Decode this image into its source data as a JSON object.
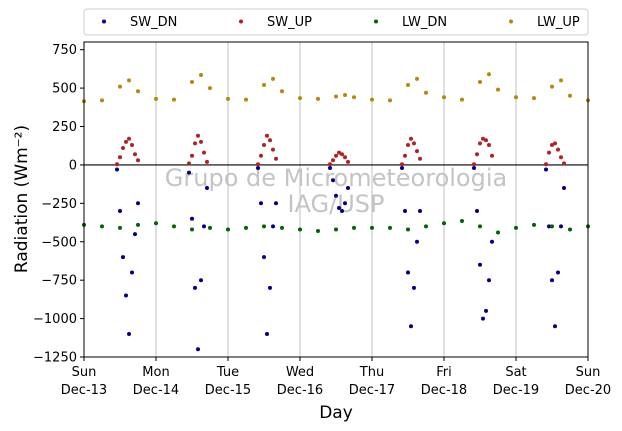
{
  "chart_data": {
    "type": "scatter",
    "title": "",
    "xlabel": "Day",
    "ylabel": "Radiation (Wm⁻²)",
    "ylim": [
      -1250,
      800
    ],
    "xlim": [
      "2015-12-13",
      "2015-12-20"
    ],
    "yticks": [
      -1250,
      -1000,
      -750,
      -500,
      -250,
      0,
      250,
      500,
      750
    ],
    "xticks": [
      {
        "date": "2015-12-13",
        "line1": "Sun",
        "line2": "Dec-13"
      },
      {
        "date": "2015-12-14",
        "line1": "Mon",
        "line2": "Dec-14"
      },
      {
        "date": "2015-12-15",
        "line1": "Tue",
        "line2": "Dec-15"
      },
      {
        "date": "2015-12-16",
        "line1": "Wed",
        "line2": "Dec-16"
      },
      {
        "date": "2015-12-17",
        "line1": "Thu",
        "line2": "Dec-17"
      },
      {
        "date": "2015-12-18",
        "line1": "Fri",
        "line2": "Dec-18"
      },
      {
        "date": "2015-12-19",
        "line1": "Sat",
        "line2": "Dec-19"
      },
      {
        "date": "2015-12-20",
        "line1": "Sun",
        "line2": "Dec-20"
      }
    ],
    "grid": "vertical",
    "legend": "top",
    "watermark": [
      "Grupo de Micrometeorologia",
      "IAG/USP"
    ],
    "zero_line": true,
    "series": [
      {
        "name": "SW_DN",
        "color": "#00008b",
        "points": [
          [
            "2015-12-13 11:00",
            -30
          ],
          [
            "2015-12-13 12:00",
            -300
          ],
          [
            "2015-12-13 13:00",
            -600
          ],
          [
            "2015-12-13 14:00",
            -850
          ],
          [
            "2015-12-13 15:00",
            -1100
          ],
          [
            "2015-12-13 16:00",
            -700
          ],
          [
            "2015-12-13 17:00",
            -450
          ],
          [
            "2015-12-13 18:00",
            -250
          ],
          [
            "2015-12-14 11:00",
            -50
          ],
          [
            "2015-12-14 12:00",
            -350
          ],
          [
            "2015-12-14 13:00",
            -800
          ],
          [
            "2015-12-14 14:00",
            -1200
          ],
          [
            "2015-12-14 15:00",
            -750
          ],
          [
            "2015-12-14 16:00",
            -400
          ],
          [
            "2015-12-14 17:00",
            -150
          ],
          [
            "2015-12-15 10:00",
            -20
          ],
          [
            "2015-12-15 11:00",
            -250
          ],
          [
            "2015-12-15 12:00",
            -600
          ],
          [
            "2015-12-15 13:00",
            -1100
          ],
          [
            "2015-12-15 14:00",
            -800
          ],
          [
            "2015-12-15 15:00",
            -400
          ],
          [
            "2015-12-15 16:00",
            -250
          ],
          [
            "2015-12-16 10:00",
            -20
          ],
          [
            "2015-12-16 11:00",
            -100
          ],
          [
            "2015-12-16 12:00",
            -200
          ],
          [
            "2015-12-16 13:00",
            -280
          ],
          [
            "2015-12-16 14:00",
            -300
          ],
          [
            "2015-12-16 15:00",
            -250
          ],
          [
            "2015-12-16 16:00",
            -150
          ],
          [
            "2015-12-17 10:00",
            -20
          ],
          [
            "2015-12-17 11:00",
            -300
          ],
          [
            "2015-12-17 12:00",
            -700
          ],
          [
            "2015-12-17 13:00",
            -1050
          ],
          [
            "2015-12-17 14:00",
            -800
          ],
          [
            "2015-12-17 15:00",
            -500
          ],
          [
            "2015-12-17 16:00",
            -300
          ],
          [
            "2015-12-18 10:00",
            -20
          ],
          [
            "2015-12-18 11:00",
            -300
          ],
          [
            "2015-12-18 12:00",
            -650
          ],
          [
            "2015-12-18 13:00",
            -1000
          ],
          [
            "2015-12-18 14:00",
            -950
          ],
          [
            "2015-12-18 15:00",
            -750
          ],
          [
            "2015-12-18 16:00",
            -500
          ],
          [
            "2015-12-19 10:00",
            -30
          ],
          [
            "2015-12-19 11:00",
            -400
          ],
          [
            "2015-12-19 12:00",
            -750
          ],
          [
            "2015-12-19 13:00",
            -1050
          ],
          [
            "2015-12-19 14:00",
            -700
          ],
          [
            "2015-12-19 15:00",
            -400
          ],
          [
            "2015-12-19 16:00",
            -150
          ]
        ]
      },
      {
        "name": "SW_UP",
        "color": "#b22222",
        "points": [
          [
            "2015-12-13 11:00",
            5
          ],
          [
            "2015-12-13 12:00",
            50
          ],
          [
            "2015-12-13 13:00",
            110
          ],
          [
            "2015-12-13 14:00",
            150
          ],
          [
            "2015-12-13 15:00",
            170
          ],
          [
            "2015-12-13 16:00",
            130
          ],
          [
            "2015-12-13 17:00",
            70
          ],
          [
            "2015-12-13 18:00",
            30
          ],
          [
            "2015-12-14 11:00",
            10
          ],
          [
            "2015-12-14 12:00",
            60
          ],
          [
            "2015-12-14 13:00",
            140
          ],
          [
            "2015-12-14 14:00",
            190
          ],
          [
            "2015-12-14 15:00",
            150
          ],
          [
            "2015-12-14 16:00",
            80
          ],
          [
            "2015-12-14 17:00",
            20
          ],
          [
            "2015-12-15 10:00",
            5
          ],
          [
            "2015-12-15 11:00",
            60
          ],
          [
            "2015-12-15 12:00",
            130
          ],
          [
            "2015-12-15 13:00",
            190
          ],
          [
            "2015-12-15 14:00",
            160
          ],
          [
            "2015-12-15 15:00",
            100
          ],
          [
            "2015-12-15 16:00",
            40
          ],
          [
            "2015-12-16 10:00",
            5
          ],
          [
            "2015-12-16 11:00",
            30
          ],
          [
            "2015-12-16 12:00",
            60
          ],
          [
            "2015-12-16 13:00",
            80
          ],
          [
            "2015-12-16 14:00",
            70
          ],
          [
            "2015-12-16 15:00",
            50
          ],
          [
            "2015-12-16 16:00",
            20
          ],
          [
            "2015-12-17 10:00",
            5
          ],
          [
            "2015-12-17 11:00",
            60
          ],
          [
            "2015-12-17 12:00",
            130
          ],
          [
            "2015-12-17 13:00",
            170
          ],
          [
            "2015-12-17 14:00",
            140
          ],
          [
            "2015-12-17 15:00",
            90
          ],
          [
            "2015-12-17 16:00",
            40
          ],
          [
            "2015-12-18 10:00",
            5
          ],
          [
            "2015-12-18 11:00",
            70
          ],
          [
            "2015-12-18 12:00",
            140
          ],
          [
            "2015-12-18 13:00",
            170
          ],
          [
            "2015-12-18 14:00",
            160
          ],
          [
            "2015-12-18 15:00",
            130
          ],
          [
            "2015-12-18 16:00",
            60
          ],
          [
            "2015-12-19 10:00",
            5
          ],
          [
            "2015-12-19 11:00",
            80
          ],
          [
            "2015-12-19 12:00",
            130
          ],
          [
            "2015-12-19 13:00",
            140
          ],
          [
            "2015-12-19 14:00",
            100
          ],
          [
            "2015-12-19 15:00",
            50
          ],
          [
            "2015-12-19 16:00",
            10
          ]
        ]
      },
      {
        "name": "LW_DN",
        "color": "#006400",
        "points": [
          [
            "2015-12-13 00:00",
            -390
          ],
          [
            "2015-12-13 06:00",
            -400
          ],
          [
            "2015-12-13 12:00",
            -410
          ],
          [
            "2015-12-13 18:00",
            -390
          ],
          [
            "2015-12-14 00:00",
            -380
          ],
          [
            "2015-12-14 06:00",
            -400
          ],
          [
            "2015-12-14 12:00",
            -420
          ],
          [
            "2015-12-14 18:00",
            -410
          ],
          [
            "2015-12-15 00:00",
            -420
          ],
          [
            "2015-12-15 06:00",
            -410
          ],
          [
            "2015-12-15 12:00",
            -400
          ],
          [
            "2015-12-15 18:00",
            -410
          ],
          [
            "2015-12-16 00:00",
            -420
          ],
          [
            "2015-12-16 06:00",
            -430
          ],
          [
            "2015-12-16 12:00",
            -420
          ],
          [
            "2015-12-16 18:00",
            -410
          ],
          [
            "2015-12-17 00:00",
            -410
          ],
          [
            "2015-12-17 06:00",
            -410
          ],
          [
            "2015-12-17 12:00",
            -420
          ],
          [
            "2015-12-17 18:00",
            -400
          ],
          [
            "2015-12-18 00:00",
            -380
          ],
          [
            "2015-12-18 06:00",
            -365
          ],
          [
            "2015-12-18 12:00",
            -400
          ],
          [
            "2015-12-18 18:00",
            -440
          ],
          [
            "2015-12-19 00:00",
            -410
          ],
          [
            "2015-12-19 06:00",
            -390
          ],
          [
            "2015-12-19 12:00",
            -400
          ],
          [
            "2015-12-19 18:00",
            -420
          ],
          [
            "2015-12-20 00:00",
            -400
          ]
        ]
      },
      {
        "name": "LW_UP",
        "color": "#b8860b",
        "points": [
          [
            "2015-12-13 00:00",
            415
          ],
          [
            "2015-12-13 06:00",
            420
          ],
          [
            "2015-12-13 12:00",
            510
          ],
          [
            "2015-12-13 15:00",
            550
          ],
          [
            "2015-12-13 18:00",
            480
          ],
          [
            "2015-12-14 00:00",
            430
          ],
          [
            "2015-12-14 06:00",
            425
          ],
          [
            "2015-12-14 12:00",
            540
          ],
          [
            "2015-12-14 15:00",
            585
          ],
          [
            "2015-12-14 18:00",
            500
          ],
          [
            "2015-12-15 00:00",
            430
          ],
          [
            "2015-12-15 06:00",
            425
          ],
          [
            "2015-12-15 12:00",
            520
          ],
          [
            "2015-12-15 15:00",
            560
          ],
          [
            "2015-12-15 18:00",
            480
          ],
          [
            "2015-12-16 00:00",
            435
          ],
          [
            "2015-12-16 06:00",
            430
          ],
          [
            "2015-12-16 12:00",
            445
          ],
          [
            "2015-12-16 15:00",
            455
          ],
          [
            "2015-12-16 18:00",
            440
          ],
          [
            "2015-12-17 00:00",
            425
          ],
          [
            "2015-12-17 06:00",
            420
          ],
          [
            "2015-12-17 12:00",
            520
          ],
          [
            "2015-12-17 15:00",
            560
          ],
          [
            "2015-12-17 18:00",
            470
          ],
          [
            "2015-12-18 00:00",
            440
          ],
          [
            "2015-12-18 06:00",
            425
          ],
          [
            "2015-12-18 12:00",
            540
          ],
          [
            "2015-12-18 15:00",
            590
          ],
          [
            "2015-12-18 18:00",
            490
          ],
          [
            "2015-12-19 00:00",
            440
          ],
          [
            "2015-12-19 06:00",
            435
          ],
          [
            "2015-12-19 12:00",
            510
          ],
          [
            "2015-12-19 15:00",
            550
          ],
          [
            "2015-12-19 18:00",
            450
          ],
          [
            "2015-12-20 00:00",
            420
          ]
        ]
      }
    ]
  }
}
